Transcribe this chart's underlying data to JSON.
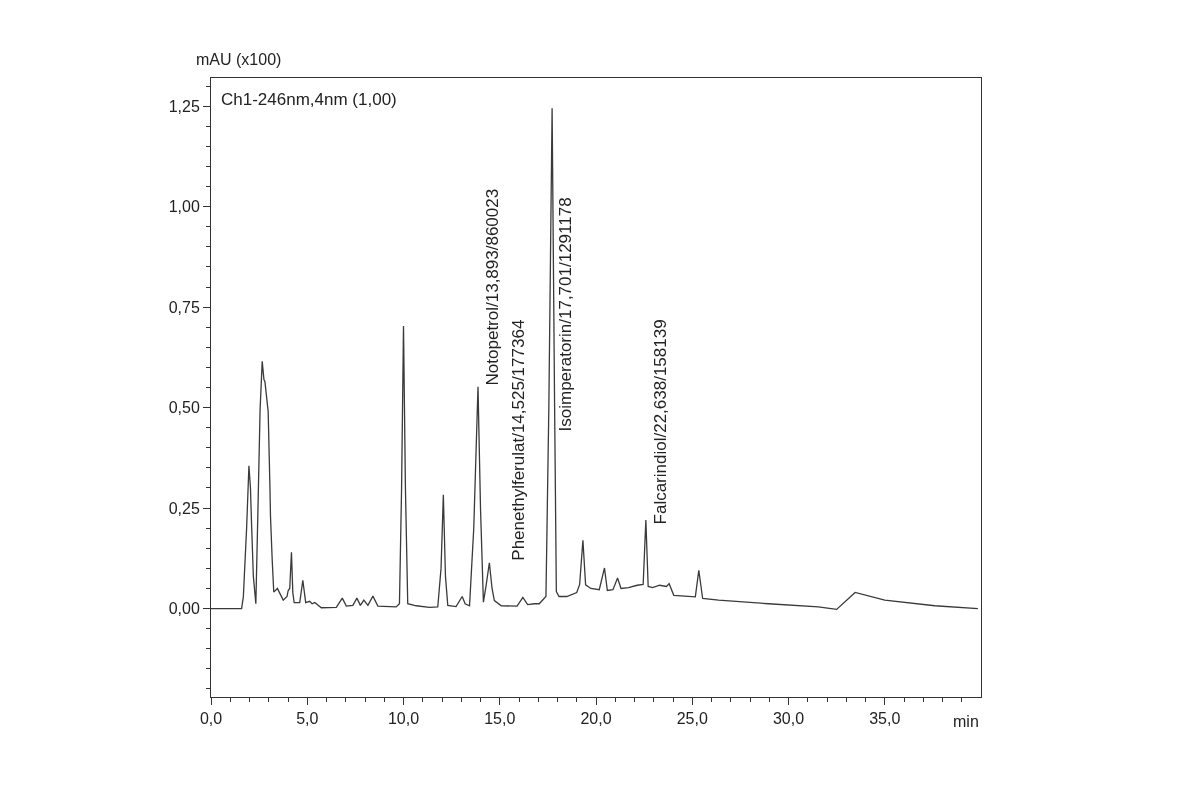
{
  "chart_data": {
    "type": "line",
    "xlabel": "min",
    "ylabel": "mAU (x100)",
    "color": "#3a3a3a",
    "x": [
      0.0,
      1.59,
      1.68,
      1.85,
      1.97,
      2.05,
      2.1,
      2.2,
      2.33,
      2.45,
      2.55,
      2.66,
      2.75,
      2.8,
      2.97,
      3.06,
      3.09,
      3.13,
      3.18,
      3.26,
      3.45,
      3.75,
      3.95,
      4.01,
      4.09,
      4.18,
      4.25,
      4.32,
      4.61,
      4.77,
      4.92,
      5.13,
      5.25,
      5.39,
      5.73,
      6.51,
      6.82,
      7.03,
      7.37,
      7.58,
      7.76,
      7.94,
      8.15,
      8.41,
      8.67,
      9.62,
      9.79,
      9.9,
      10.0,
      10.1,
      10.22,
      10.66,
      11.35,
      11.78,
      11.95,
      12.07,
      12.18,
      12.3,
      12.73,
      13.05,
      13.2,
      13.43,
      13.65,
      13.87,
      14.0,
      14.15,
      14.3,
      14.46,
      14.6,
      14.72,
      15.08,
      15.9,
      16.2,
      16.45,
      16.8,
      17.05,
      17.4,
      17.55,
      17.72,
      17.85,
      17.94,
      18.08,
      18.48,
      19.0,
      19.15,
      19.32,
      19.46,
      19.73,
      20.17,
      20.44,
      20.59,
      20.88,
      21.12,
      21.3,
      21.69,
      22.14,
      22.45,
      22.59,
      22.71,
      22.94,
      23.3,
      23.66,
      23.8,
      24.04,
      25.16,
      25.34,
      25.54,
      26.37,
      28.96,
      31.55,
      32.5,
      33.46,
      35.0,
      37.6,
      39.84
    ],
    "values": [
      0.0,
      0.0,
      0.029,
      0.2,
      0.355,
      0.3,
      0.22,
      0.08,
      0.012,
      0.27,
      0.495,
      0.615,
      0.57,
      0.565,
      0.49,
      0.305,
      0.231,
      0.181,
      0.12,
      0.041,
      0.05,
      0.021,
      0.03,
      0.045,
      0.05,
      0.14,
      0.04,
      0.015,
      0.015,
      0.07,
      0.015,
      0.018,
      0.012,
      0.015,
      0.002,
      0.003,
      0.026,
      0.006,
      0.008,
      0.026,
      0.008,
      0.021,
      0.008,
      0.031,
      0.006,
      0.004,
      0.012,
      0.3,
      0.703,
      0.3,
      0.012,
      0.007,
      0.003,
      0.004,
      0.1,
      0.283,
      0.08,
      0.008,
      0.005,
      0.03,
      0.012,
      0.007,
      0.2,
      0.552,
      0.25,
      0.016,
      0.06,
      0.114,
      0.05,
      0.02,
      0.007,
      0.006,
      0.028,
      0.01,
      0.012,
      0.012,
      0.03,
      0.5,
      1.245,
      0.5,
      0.042,
      0.03,
      0.03,
      0.04,
      0.06,
      0.17,
      0.059,
      0.05,
      0.047,
      0.101,
      0.045,
      0.047,
      0.076,
      0.05,
      0.052,
      0.058,
      0.06,
      0.22,
      0.055,
      0.052,
      0.058,
      0.055,
      0.062,
      0.033,
      0.029,
      0.095,
      0.025,
      0.021,
      0.012,
      0.004,
      -0.002,
      0.04,
      0.021,
      0.007,
      0.0
    ],
    "xlim": [
      0,
      40
    ],
    "ylim": [
      -0.22,
      1.32
    ],
    "xticks": [
      {
        "value": 0,
        "label": "0,0"
      },
      {
        "value": 1,
        "label": null
      },
      {
        "value": 2,
        "label": null
      },
      {
        "value": 3,
        "label": null
      },
      {
        "value": 4,
        "label": null
      },
      {
        "value": 5,
        "label": "5,0"
      },
      {
        "value": 6,
        "label": null
      },
      {
        "value": 7,
        "label": null
      },
      {
        "value": 8,
        "label": null
      },
      {
        "value": 9,
        "label": null
      },
      {
        "value": 10,
        "label": "10,0"
      },
      {
        "value": 11,
        "label": null
      },
      {
        "value": 12,
        "label": null
      },
      {
        "value": 13,
        "label": null
      },
      {
        "value": 14,
        "label": null
      },
      {
        "value": 15,
        "label": "15,0"
      },
      {
        "value": 16,
        "label": null
      },
      {
        "value": 17,
        "label": null
      },
      {
        "value": 18,
        "label": null
      },
      {
        "value": 19,
        "label": null
      },
      {
        "value": 20,
        "label": "20,0"
      },
      {
        "value": 21,
        "label": null
      },
      {
        "value": 22,
        "label": null
      },
      {
        "value": 23,
        "label": null
      },
      {
        "value": 24,
        "label": null
      },
      {
        "value": 25,
        "label": "25,0"
      },
      {
        "value": 26,
        "label": null
      },
      {
        "value": 27,
        "label": null
      },
      {
        "value": 28,
        "label": null
      },
      {
        "value": 29,
        "label": null
      },
      {
        "value": 30,
        "label": "30,0"
      },
      {
        "value": 31,
        "label": null
      },
      {
        "value": 32,
        "label": null
      },
      {
        "value": 33,
        "label": null
      },
      {
        "value": 34,
        "label": null
      },
      {
        "value": 35,
        "label": "35,0"
      },
      {
        "value": 36,
        "label": null
      },
      {
        "value": 37,
        "label": null
      },
      {
        "value": 38,
        "label": null
      },
      {
        "value": 39,
        "label": null
      }
    ],
    "yticks": [
      {
        "value": -0.2,
        "label": null
      },
      {
        "value": -0.15,
        "label": null
      },
      {
        "value": -0.1,
        "label": null
      },
      {
        "value": -0.05,
        "label": null
      },
      {
        "value": 0,
        "label": "0,00"
      },
      {
        "value": 0.05,
        "label": null
      },
      {
        "value": 0.1,
        "label": null
      },
      {
        "value": 0.15,
        "label": null
      },
      {
        "value": 0.2,
        "label": null
      },
      {
        "value": 0.25,
        "label": "0,25"
      },
      {
        "value": 0.3,
        "label": null
      },
      {
        "value": 0.35,
        "label": null
      },
      {
        "value": 0.4,
        "label": null
      },
      {
        "value": 0.45,
        "label": null
      },
      {
        "value": 0.5,
        "label": "0,50"
      },
      {
        "value": 0.55,
        "label": null
      },
      {
        "value": 0.6,
        "label": null
      },
      {
        "value": 0.65,
        "label": null
      },
      {
        "value": 0.7,
        "label": null
      },
      {
        "value": 0.75,
        "label": "0,75"
      },
      {
        "value": 0.8,
        "label": null
      },
      {
        "value": 0.85,
        "label": null
      },
      {
        "value": 0.9,
        "label": null
      },
      {
        "value": 0.95,
        "label": null
      },
      {
        "value": 1.0,
        "label": "1,00"
      },
      {
        "value": 1.05,
        "label": null
      },
      {
        "value": 1.1,
        "label": null
      },
      {
        "value": 1.15,
        "label": null
      },
      {
        "value": 1.2,
        "label": null
      },
      {
        "value": 1.25,
        "label": "1,25"
      },
      {
        "value": 1.3,
        "label": null
      }
    ],
    "annotations": [
      "Ch1-246nm,4nm (1,00)",
      {
        "text": "Notopetrol/13,893/860023",
        "x": 13.893,
        "y": 0.55
      },
      {
        "text": "Phenethylferulat/14,525/177364",
        "x": 14.525,
        "y": 0.114
      },
      {
        "text": "Isoimperatorin/17,701/1291178",
        "x": 17.701,
        "y": 0.435
      },
      {
        "text": "Falcarindiol/22,638/158139",
        "x": 22.638,
        "y": 0.205
      }
    ]
  }
}
